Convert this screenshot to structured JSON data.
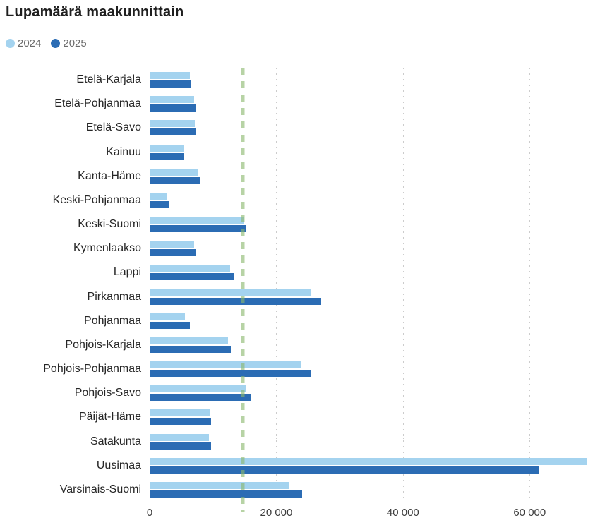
{
  "title": "Lupamäärä maakunnittain",
  "legend": {
    "items": [
      {
        "label": "2024",
        "color": "#a4d3ef"
      },
      {
        "label": "2025",
        "color": "#2b6cb4"
      }
    ]
  },
  "colors": {
    "series_2024": "#a4d3ef",
    "series_2025": "#2b6cb4",
    "gridline": "#cccccc",
    "reference_line": "#8bb86e",
    "title_text": "#1f1f1f",
    "label_text": "#262626",
    "axis_text": "#3d3d3d",
    "legend_text": "#6b6b6b"
  },
  "chart_data": {
    "type": "bar",
    "orientation": "horizontal",
    "title": "Lupamäärä maakunnittain",
    "xlabel": "",
    "ylabel": "",
    "grid": "vertical dotted gridlines",
    "legend_position": "top-left",
    "categories": [
      "Etelä-Karjala",
      "Etelä-Pohjanmaa",
      "Etelä-Savo",
      "Kainuu",
      "Kanta-Häme",
      "Keski-Pohjanmaa",
      "Keski-Suomi",
      "Kymenlaakso",
      "Lappi",
      "Pirkanmaa",
      "Pohjanmaa",
      "Pohjois-Karjala",
      "Pohjois-Pohjanmaa",
      "Pohjois-Savo",
      "Päijät-Häme",
      "Satakunta",
      "Uusimaa",
      "Varsinais-Suomi"
    ],
    "series": [
      {
        "name": "2024",
        "color": "#a4d3ef",
        "values": [
          6300,
          7000,
          7100,
          5400,
          7600,
          2700,
          14900,
          7000,
          12700,
          25400,
          5600,
          12400,
          23900,
          15300,
          9600,
          9300,
          69000,
          22000
        ]
      },
      {
        "name": "2025",
        "color": "#2b6cb4",
        "values": [
          6500,
          7300,
          7300,
          5500,
          8000,
          3000,
          15200,
          7400,
          13200,
          26900,
          6300,
          12800,
          25400,
          16000,
          9700,
          9700,
          61400,
          24000
        ]
      }
    ],
    "x_axis": {
      "min": 0,
      "max": 70000,
      "ticks": [
        0,
        20000,
        40000,
        60000
      ],
      "tick_labels": [
        "0",
        "20 000",
        "40 000",
        "60 000"
      ]
    },
    "reference_line": {
      "value": 14700,
      "style": "dashed",
      "color": "#8bb86e"
    }
  }
}
